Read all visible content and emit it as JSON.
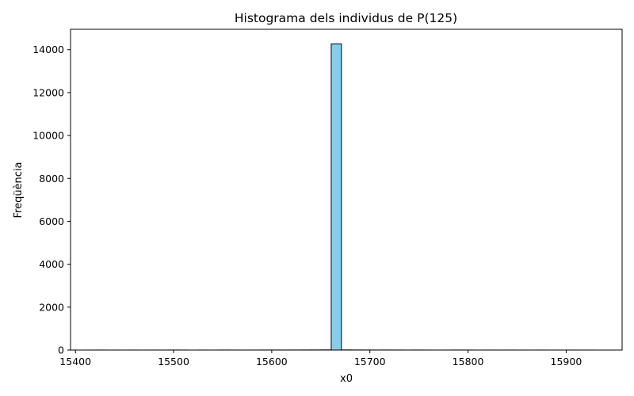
{
  "chart_data": {
    "type": "bar",
    "title": "Histograma dels individus de P(125)",
    "xlabel": "x0",
    "ylabel": "Freqüència",
    "xlim": [
      15395,
      15957
    ],
    "ylim": [
      0,
      14950
    ],
    "xticks": [
      15400,
      15500,
      15600,
      15700,
      15800,
      15900
    ],
    "yticks": [
      0,
      2000,
      4000,
      6000,
      8000,
      10000,
      12000,
      14000
    ],
    "grid": false,
    "bin_edges": [
      15411,
      15421.4,
      15431.8,
      15442.2,
      15452.6,
      15463,
      15473.4,
      15483.8,
      15494.2,
      15504.6,
      15515,
      15525.4,
      15535.8,
      15546.2,
      15556.6,
      15567,
      15577.4,
      15587.8,
      15598.2,
      15608.6,
      15619,
      15629.4,
      15639.8,
      15650.2,
      15660.6,
      15671,
      15681.4,
      15691.8,
      15702.2,
      15712.6,
      15723,
      15733.4,
      15743.8,
      15754.2,
      15764.6,
      15775,
      15785.4,
      15795.8,
      15806.2,
      15816.6,
      15827,
      15837.4,
      15847.8,
      15858.2,
      15868.6,
      15879,
      15889.4,
      15899.8,
      15910.2,
      15920.6,
      15931
    ],
    "counts": [
      1,
      2,
      1,
      1,
      2,
      1,
      2,
      1,
      3,
      2,
      0,
      2,
      1,
      3,
      2,
      1,
      2,
      3,
      4,
      3,
      4,
      5,
      6,
      8,
      14270,
      7,
      5,
      4,
      3,
      4,
      3,
      2,
      3,
      2,
      1,
      2,
      3,
      2,
      1,
      2,
      1,
      2,
      1,
      1,
      2,
      1,
      1,
      2,
      1,
      1
    ],
    "bar_color": "#87ceeb",
    "edge_color": "#000000"
  }
}
